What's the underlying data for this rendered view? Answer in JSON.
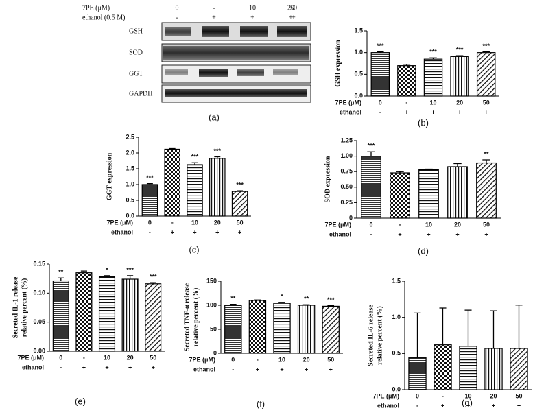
{
  "blot": {
    "row_titles": [
      "7PE (μM)",
      "ethanol (0.5 M)"
    ],
    "conc": [
      "0",
      "-",
      "10",
      "20",
      "50"
    ],
    "ethanol": [
      "-",
      "+",
      "+",
      "+",
      "+"
    ],
    "bands": [
      "GSH",
      "SOD",
      "GGT",
      "GAPDH"
    ],
    "caption": "(a)"
  },
  "chart_data": [
    {
      "type": "bar",
      "caption": "(b)",
      "ylabel": "GSH expression",
      "row_titles": [
        "7PE (μM)",
        "ethanol"
      ],
      "categories": [
        "0",
        "-",
        "10",
        "20",
        "50"
      ],
      "ethanol": [
        "-",
        "+",
        "+",
        "+",
        "+"
      ],
      "values": [
        1.0,
        0.7,
        0.85,
        0.91,
        1.0
      ],
      "errors": [
        0.02,
        0.03,
        0.03,
        0.02,
        0.02
      ],
      "significance": [
        "***",
        null,
        "***",
        "***",
        "***"
      ],
      "ylim": [
        0,
        1.5
      ],
      "yticks": [
        {
          "value": 0,
          "label": "0.0"
        },
        0.5,
        {
          "value": 1,
          "label": "1.0"
        },
        1.5
      ]
    },
    {
      "type": "bar",
      "caption": "(c)",
      "ylabel": "GGT expression",
      "row_titles": [
        "7PE (μM)",
        "ethanol"
      ],
      "categories": [
        "0",
        "-",
        "10",
        "20",
        "50"
      ],
      "ethanol": [
        "-",
        "+",
        "+",
        "+",
        "+"
      ],
      "values": [
        1.0,
        2.12,
        1.63,
        1.83,
        0.78
      ],
      "errors": [
        0.03,
        0.02,
        0.06,
        0.05,
        0.02
      ],
      "significance": [
        "***",
        null,
        "***",
        "***",
        "***"
      ],
      "ylim": [
        0,
        2.5
      ],
      "yticks": [
        {
          "value": 0,
          "label": "0.0"
        },
        0.5,
        {
          "value": 1,
          "label": "1.0"
        },
        1.5,
        {
          "value": 2,
          "label": "2.0"
        },
        2.5
      ]
    },
    {
      "type": "bar",
      "caption": "(d)",
      "ylabel": "SOD expression",
      "row_titles": [
        "7PE (μM)",
        "ethanol"
      ],
      "categories": [
        "0",
        "-",
        "10",
        "20",
        "50"
      ],
      "ethanol": [
        "-",
        "+",
        "+",
        "+",
        "+"
      ],
      "values": [
        1.0,
        0.73,
        0.78,
        0.83,
        0.89
      ],
      "errors": [
        0.07,
        0.02,
        0.01,
        0.05,
        0.05
      ],
      "significance": [
        "***",
        null,
        null,
        null,
        "**"
      ],
      "ylim": [
        0,
        1.25
      ],
      "yticks": [
        0,
        0.25,
        {
          "value": 0.5,
          "label": "0.50"
        },
        0.75,
        {
          "value": 1,
          "label": "1.00"
        },
        1.25
      ]
    },
    {
      "type": "bar",
      "caption": "(e)",
      "ylabel": [
        "Secreted IL-1 release",
        "relative percent (%)"
      ],
      "row_titles": [
        "7PE (μM)",
        "ethanol"
      ],
      "categories": [
        "0",
        "-",
        "10",
        "20",
        "50"
      ],
      "ethanol": [
        "-",
        "+",
        "+",
        "+",
        "+"
      ],
      "values": [
        0.121,
        0.135,
        0.128,
        0.124,
        0.116
      ],
      "errors": [
        0.005,
        0.003,
        0.002,
        0.006,
        0.002
      ],
      "significance": [
        "**",
        null,
        "*",
        "***",
        "***"
      ],
      "ylim": [
        0,
        0.15
      ],
      "yticks": [
        {
          "value": 0,
          "label": "0.00"
        },
        0.05,
        {
          "value": 0.1,
          "label": "0.10"
        },
        0.15
      ]
    },
    {
      "type": "bar",
      "caption": "(f)",
      "ylabel": [
        "Secreted TNF-α release",
        "relative percent (%)"
      ],
      "row_titles": [
        "7PE (μM)",
        "ethanol"
      ],
      "categories": [
        "0",
        "-",
        "10",
        "20",
        "50"
      ],
      "ethanol": [
        "-",
        "+",
        "+",
        "+",
        "+"
      ],
      "values": [
        100,
        110,
        104,
        100,
        98
      ],
      "errors": [
        2,
        1,
        2,
        1,
        1
      ],
      "significance": [
        "**",
        null,
        "*",
        "**",
        "***"
      ],
      "ylim": [
        0,
        150
      ],
      "yticks": [
        0,
        50,
        100,
        150
      ]
    },
    {
      "type": "bar",
      "caption": "(g)",
      "ylabel": [
        "Secreted IL-6 release",
        "relative percent (%)"
      ],
      "row_titles": [
        "7PE (μM)",
        "ethanol"
      ],
      "categories": [
        "0",
        "-",
        "10",
        "20",
        "50"
      ],
      "ethanol": [
        "-",
        "+",
        "+",
        "+",
        "+"
      ],
      "values": [
        0.44,
        0.62,
        0.6,
        0.57,
        0.57
      ],
      "errors": [
        0.62,
        0.51,
        0.5,
        0.52,
        0.6
      ],
      "ylim": [
        0,
        1.5
      ],
      "yticks": [
        {
          "value": 0,
          "label": "0.0"
        },
        0.5,
        {
          "value": 1,
          "label": "1.0"
        },
        1.5
      ]
    }
  ]
}
